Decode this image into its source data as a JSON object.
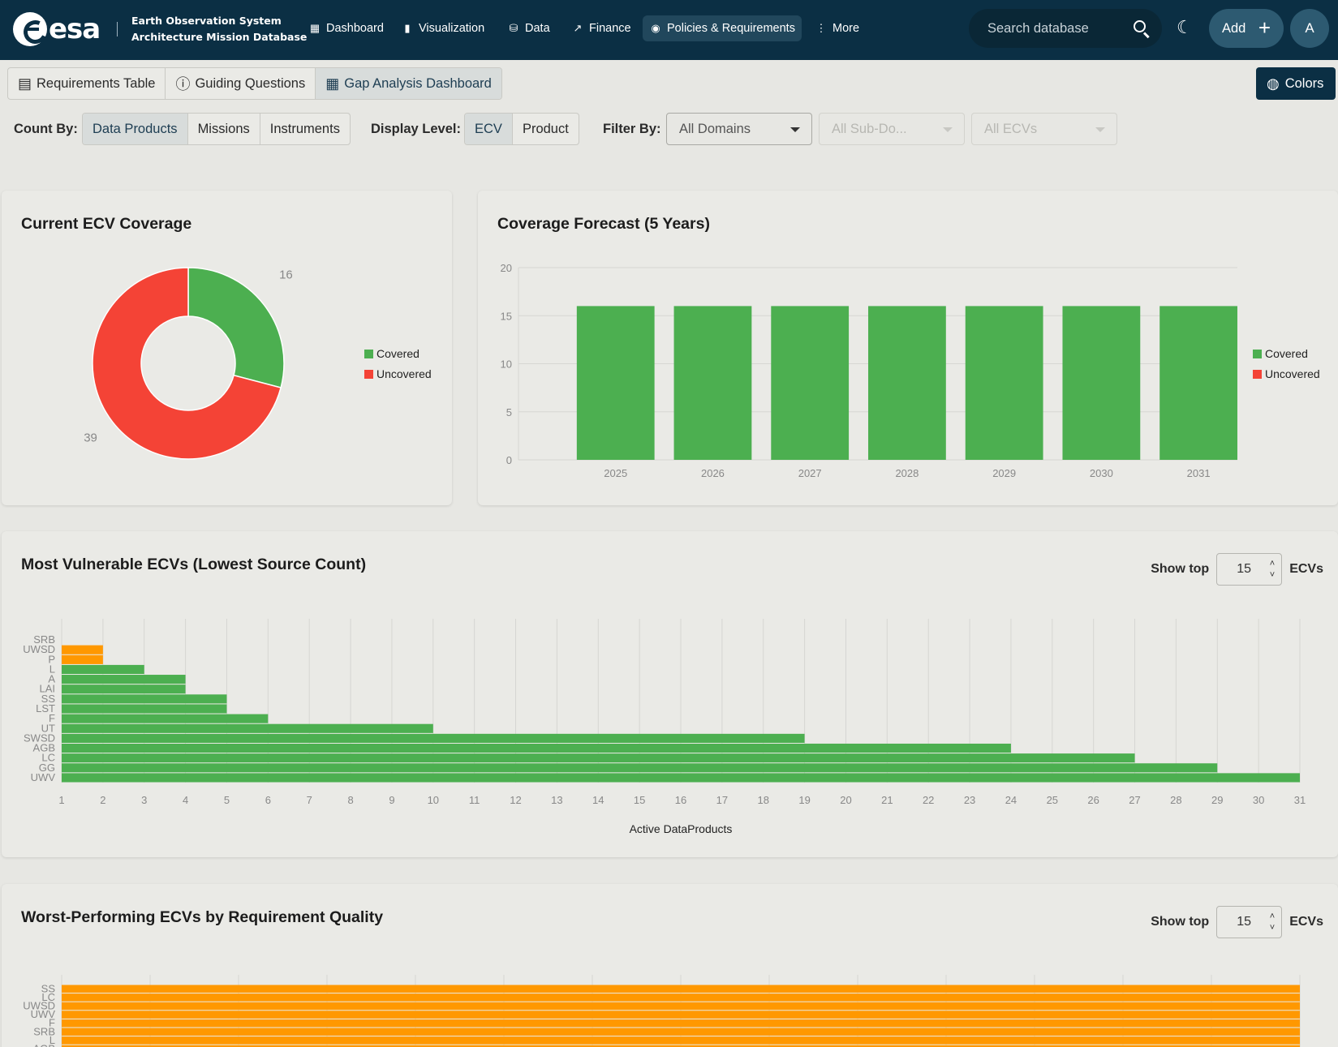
{
  "header": {
    "logo_text": "esa",
    "app_title_line1": "Earth Observation System",
    "app_title_line2": "Architecture Mission Database",
    "nav": [
      {
        "label": "Dashboard",
        "icon": "dashboard-icon",
        "active": false
      },
      {
        "label": "Visualization",
        "icon": "bar-chart-icon",
        "active": false
      },
      {
        "label": "Data",
        "icon": "database-icon",
        "active": false
      },
      {
        "label": "Finance",
        "icon": "trend-icon",
        "active": false
      },
      {
        "label": "Policies & Requirements",
        "icon": "eye-icon",
        "active": true
      },
      {
        "label": "More",
        "icon": "more-vertical-icon",
        "active": false
      }
    ],
    "search_placeholder": "Search database",
    "add_label": "Add",
    "avatar_initial": "A"
  },
  "tabs": [
    {
      "label": "Requirements Table",
      "icon": "table-icon",
      "active": false
    },
    {
      "label": "Guiding Questions",
      "icon": "question-icon",
      "active": false
    },
    {
      "label": "Gap Analysis Dashboard",
      "icon": "dashboard-icon",
      "active": true
    }
  ],
  "colors_button": "Colors",
  "filters": {
    "count_by_label": "Count By:",
    "count_by_options": [
      "Data Products",
      "Missions",
      "Instruments"
    ],
    "count_by_selected": "Data Products",
    "display_level_label": "Display Level:",
    "display_level_options": [
      "ECV",
      "Product"
    ],
    "display_level_selected": "ECV",
    "filter_by_label": "Filter By:",
    "domain_value": "All Domains",
    "subdomain_value": "All Sub-Do...",
    "ecv_value": "All ECVs"
  },
  "colors": {
    "covered": "#4caf50",
    "uncovered": "#f44336",
    "vulnerable": "#ff9800",
    "navy": "#0b2f44"
  },
  "charts": {
    "coverage": {
      "title": "Current ECV Coverage",
      "chart_data": {
        "type": "pie",
        "slices": [
          {
            "label": "Covered",
            "value": 16,
            "color": "#4caf50"
          },
          {
            "label": "Uncovered",
            "value": 39,
            "color": "#f44336"
          }
        ],
        "legend": "right"
      }
    },
    "forecast": {
      "title": "Coverage Forecast (5 Years)",
      "chart_data": {
        "type": "bar",
        "categories": [
          "2025",
          "2026",
          "2027",
          "2028",
          "2029",
          "2030",
          "2031"
        ],
        "series": [
          {
            "name": "Covered",
            "values": [
              16,
              16,
              16,
              16,
              16,
              16,
              16
            ],
            "color": "#4caf50"
          },
          {
            "name": "Uncovered",
            "values": [
              0,
              0,
              0,
              0,
              0,
              0,
              0
            ],
            "color": "#f44336"
          }
        ],
        "ylim": [
          0,
          20
        ],
        "yticks": [
          0,
          5,
          10,
          15,
          20
        ],
        "legend": "right",
        "grid": true
      }
    },
    "vulnerable": {
      "title": "Most Vulnerable ECVs (Lowest Source Count)",
      "show_top_label": "Show top",
      "show_top_value": "15",
      "show_top_unit": "ECVs",
      "chart_data": {
        "type": "bar",
        "orientation": "horizontal",
        "categories": [
          "SRB",
          "UWSD",
          "P",
          "L",
          "A",
          "LAI",
          "SS",
          "LST",
          "F",
          "UT",
          "SWSD",
          "AGB",
          "LC",
          "GG",
          "UWV"
        ],
        "values": [
          1,
          2,
          2,
          3,
          4,
          4,
          5,
          5,
          6,
          10,
          19,
          24,
          27,
          29,
          31
        ],
        "colors": [
          "#ff9800",
          "#ff9800",
          "#ff9800",
          "#4caf50",
          "#4caf50",
          "#4caf50",
          "#4caf50",
          "#4caf50",
          "#4caf50",
          "#4caf50",
          "#4caf50",
          "#4caf50",
          "#4caf50",
          "#4caf50",
          "#4caf50"
        ],
        "xlim": [
          1,
          31
        ],
        "xlabel": "Active DataProducts",
        "grid": true
      }
    },
    "worst": {
      "title": "Worst-Performing ECVs by Requirement Quality",
      "show_top_label": "Show top",
      "show_top_value": "15",
      "show_top_unit": "ECVs",
      "chart_data": {
        "type": "bar",
        "orientation": "horizontal",
        "categories": [
          "SS",
          "LC",
          "UWSD",
          "UWV",
          "F",
          "SRB",
          "L",
          "AGB"
        ],
        "values": [
          1,
          1,
          1,
          1,
          1,
          1,
          1,
          1
        ],
        "color": "#ff9800",
        "xlim": [
          0,
          1
        ]
      }
    }
  }
}
